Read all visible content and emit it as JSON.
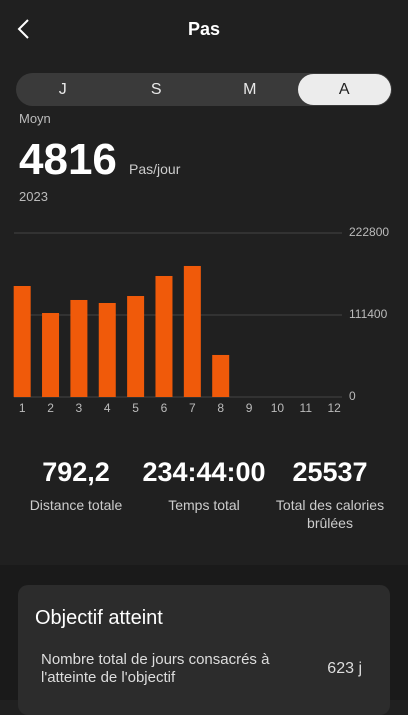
{
  "header": {
    "title": "Pas"
  },
  "tabs": [
    "J",
    "S",
    "M",
    "A"
  ],
  "summary": {
    "label": "Moyn",
    "value": "4816",
    "unit": "Pas/jour",
    "period": "2023"
  },
  "chart_data": {
    "type": "bar",
    "categories": [
      "1",
      "2",
      "3",
      "4",
      "5",
      "6",
      "7",
      "8",
      "9",
      "10",
      "11",
      "12"
    ],
    "values": [
      150800,
      114100,
      131800,
      127700,
      137200,
      164400,
      178000,
      57100,
      null,
      null,
      null,
      null
    ],
    "color": "#f05a0a",
    "ylim": [
      0,
      222800
    ],
    "yticks": [
      0,
      111400,
      222800
    ],
    "grid": true
  },
  "stats": [
    {
      "value": "792,2",
      "label": "Distance totale"
    },
    {
      "value": "234:44:00",
      "label": "Temps total"
    },
    {
      "value": "25537",
      "label": "Total des calories brûlées"
    }
  ],
  "objective": {
    "title": "Objectif atteint",
    "row_label": "Nombre total de jours consacrés à l'atteinte de l'objectif",
    "row_value": "623 j"
  }
}
